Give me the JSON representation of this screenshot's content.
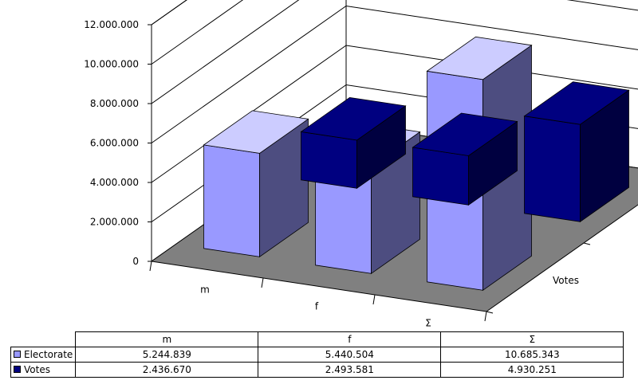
{
  "chart_data": {
    "type": "bar",
    "categories": [
      "m",
      "f",
      "Σ"
    ],
    "series": [
      {
        "name": "Electorate",
        "values": [
          5244839,
          5440504,
          10685343
        ],
        "formatted": [
          "5.244.839",
          "5.440.504",
          "10.685.343"
        ]
      },
      {
        "name": "Votes",
        "values": [
          2436670,
          2493581,
          4930251
        ],
        "formatted": [
          "2.436.670",
          "2.493.581",
          "4.930.251"
        ]
      }
    ],
    "yticks": [
      "0",
      "2.000.000",
      "4.000.000",
      "6.000.000",
      "8.000.000",
      "10.000.000",
      "12.000.000"
    ],
    "ylim": [
      0,
      12000000
    ],
    "depth_axis": [
      "Votes",
      "Electorate"
    ],
    "grid": true,
    "style": "3d-clustered-column",
    "legend": "data-table"
  },
  "colors": {
    "electorate_front": "#9999ff",
    "electorate_side": "#4d4d80",
    "electorate_top": "#ccccff",
    "votes_front": "#000080",
    "votes_side": "#000040",
    "votes_top": "#000080",
    "floor": "#808080",
    "walls": "#ffffff"
  },
  "table": {
    "headers": [
      "m",
      "f",
      "Σ"
    ]
  }
}
